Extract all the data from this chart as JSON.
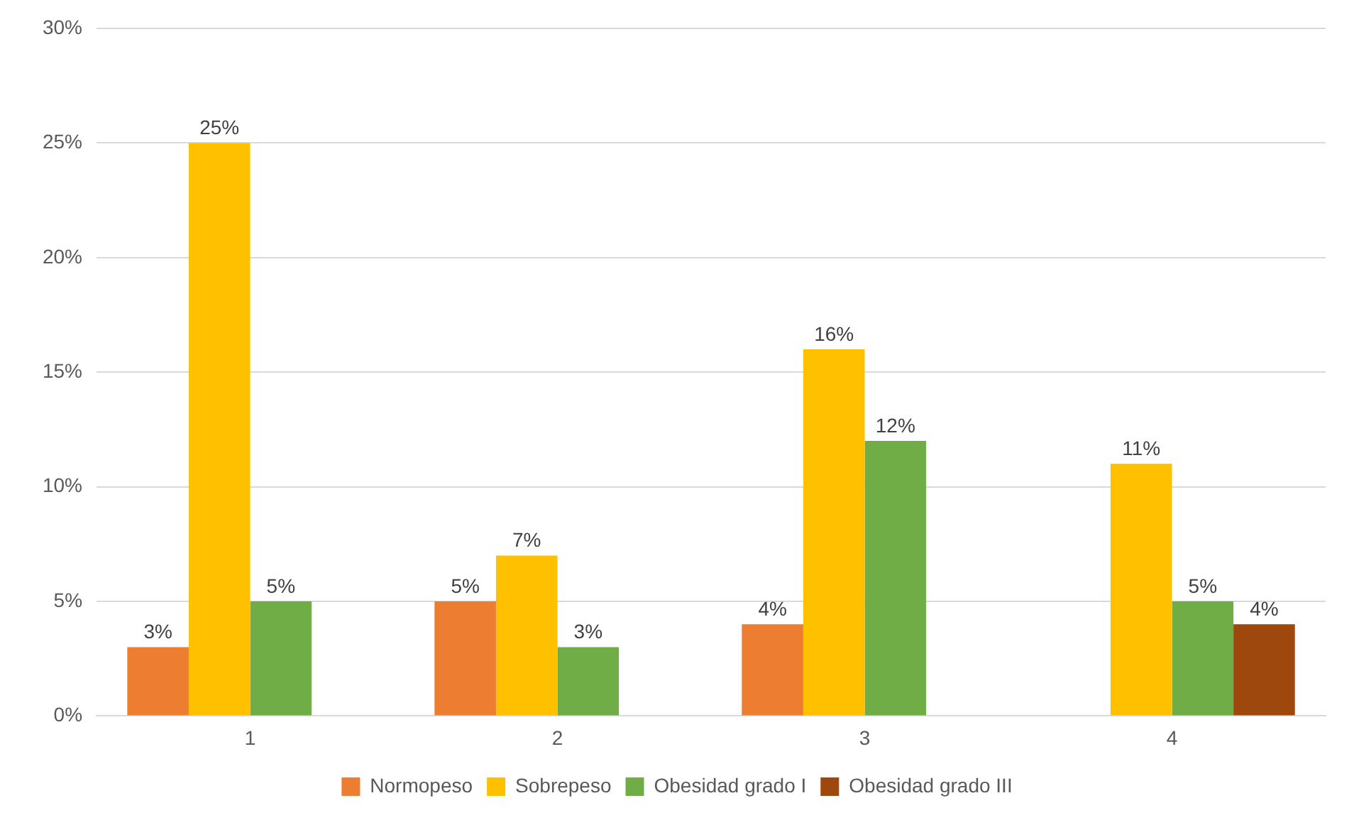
{
  "chart_data": {
    "type": "bar",
    "categories": [
      "1",
      "2",
      "3",
      "4"
    ],
    "series": [
      {
        "name": "Normopeso",
        "color": "#ed7d31",
        "values": [
          3,
          5,
          4,
          null
        ],
        "value_labels": [
          "3%",
          "5%",
          "4%",
          null
        ]
      },
      {
        "name": "Sobrepeso",
        "color": "#ffc000",
        "values": [
          25,
          7,
          16,
          11
        ],
        "value_labels": [
          "25%",
          "7%",
          "16%",
          "11%"
        ]
      },
      {
        "name": "Obesidad grado I",
        "color": "#70ad47",
        "values": [
          5,
          3,
          12,
          5
        ],
        "value_labels": [
          "5%",
          "3%",
          "12%",
          "5%"
        ]
      },
      {
        "name": "Obesidad grado III",
        "color": "#9e480e",
        "values": [
          null,
          null,
          null,
          4
        ],
        "value_labels": [
          null,
          null,
          null,
          "4%"
        ]
      }
    ],
    "ylim": [
      0,
      30
    ],
    "yticks": [
      {
        "value": 0,
        "label": "0%"
      },
      {
        "value": 5,
        "label": "5%"
      },
      {
        "value": 10,
        "label": "10%"
      },
      {
        "value": 15,
        "label": "15%"
      },
      {
        "value": 20,
        "label": "20%"
      },
      {
        "value": 25,
        "label": "25%"
      },
      {
        "value": 30,
        "label": "30%"
      }
    ],
    "grid": "y",
    "legend": "bottom"
  }
}
